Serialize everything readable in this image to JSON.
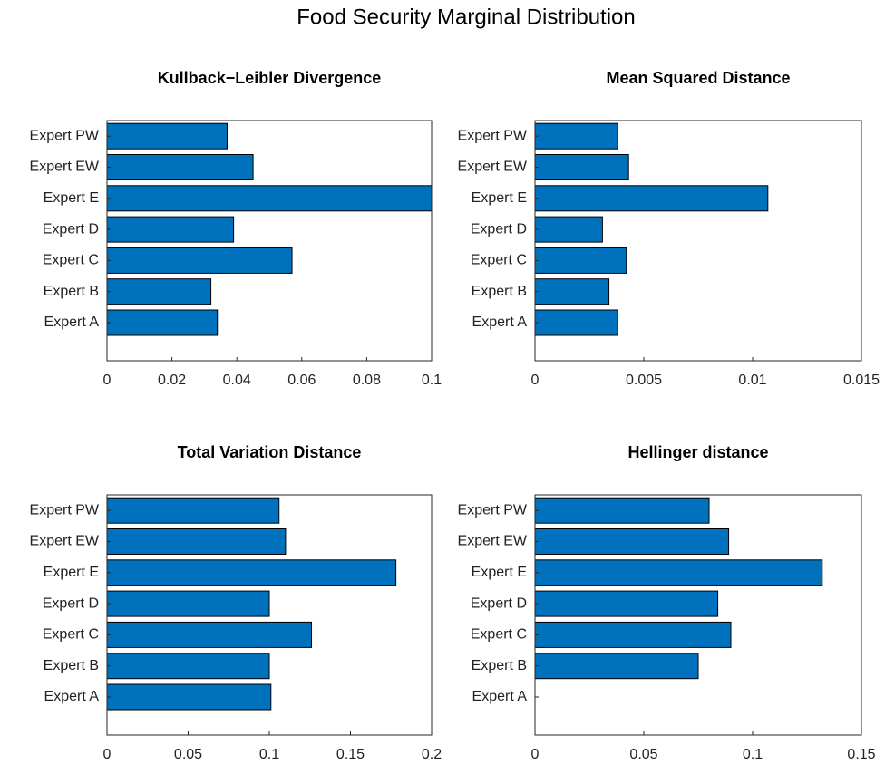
{
  "title": "Food Security Marginal Distribution",
  "chart_data": [
    {
      "type": "barh",
      "title": "Kullback−Leibler Divergence",
      "categories": [
        "Expert A",
        "Expert B",
        "Expert C",
        "Expert D",
        "Expert E",
        "Expert EW",
        "Expert PW"
      ],
      "values": [
        0.034,
        0.032,
        0.057,
        0.039,
        0.105,
        0.045,
        0.037
      ],
      "color": "#0072bd",
      "xlim": [
        0,
        0.1
      ],
      "xticks": [
        0,
        0.02,
        0.04,
        0.06,
        0.08,
        0.1
      ]
    },
    {
      "type": "barh",
      "title": "Mean Squared Distance",
      "categories": [
        "Expert A",
        "Expert B",
        "Expert C",
        "Expert D",
        "Expert E",
        "Expert EW",
        "Expert PW"
      ],
      "values": [
        0.0038,
        0.0034,
        0.0042,
        0.0031,
        0.0107,
        0.0043,
        0.0038
      ],
      "color": "#0072bd",
      "xlim": [
        0,
        0.015
      ],
      "xticks": [
        0,
        0.005,
        0.01,
        0.015
      ]
    },
    {
      "type": "barh",
      "title": "Total Variation Distance",
      "categories": [
        "Expert A",
        "Expert B",
        "Expert C",
        "Expert D",
        "Expert E",
        "Expert EW",
        "Expert PW"
      ],
      "values": [
        0.101,
        0.1,
        0.126,
        0.1,
        0.178,
        0.11,
        0.106
      ],
      "color": "#0072bd",
      "xlim": [
        0,
        0.2
      ],
      "xticks": [
        0,
        0.05,
        0.1,
        0.15,
        0.2
      ]
    },
    {
      "type": "barh",
      "title": "Hellinger distance",
      "categories": [
        "Expert A",
        "Expert B",
        "Expert C",
        "Expert D",
        "Expert E",
        "Expert EW",
        "Expert PW"
      ],
      "values": [
        null,
        0.075,
        0.09,
        0.084,
        0.132,
        0.089,
        0.08
      ],
      "color": "#0072bd",
      "xlim": [
        0,
        0.15
      ],
      "xticks": [
        0,
        0.05,
        0.1,
        0.15
      ]
    }
  ]
}
